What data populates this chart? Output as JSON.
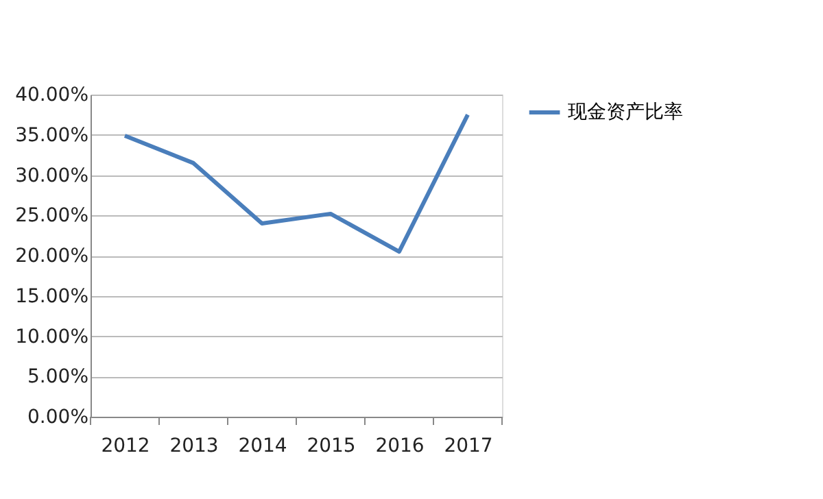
{
  "chart_data": {
    "type": "line",
    "categories": [
      "2012",
      "2013",
      "2014",
      "2015",
      "2016",
      "2017"
    ],
    "series": [
      {
        "name": "现金资产比率",
        "color": "#4a7ebb",
        "values": [
          34.9,
          31.5,
          24.0,
          25.2,
          20.5,
          37.5
        ]
      }
    ],
    "ylim": [
      0,
      40
    ],
    "yticks": [
      {
        "value": 0,
        "label": "0.00%"
      },
      {
        "value": 5,
        "label": "5.00%"
      },
      {
        "value": 10,
        "label": "10.00%"
      },
      {
        "value": 15,
        "label": "15.00%"
      },
      {
        "value": 20,
        "label": "20.00%"
      },
      {
        "value": 25,
        "label": "25.00%"
      },
      {
        "value": 30,
        "label": "30.00%"
      },
      {
        "value": 35,
        "label": "35.00%"
      },
      {
        "value": 40,
        "label": "40.00%"
      }
    ],
    "grid": "y",
    "legend": "top right",
    "marker": "none",
    "line_style": "solid"
  }
}
